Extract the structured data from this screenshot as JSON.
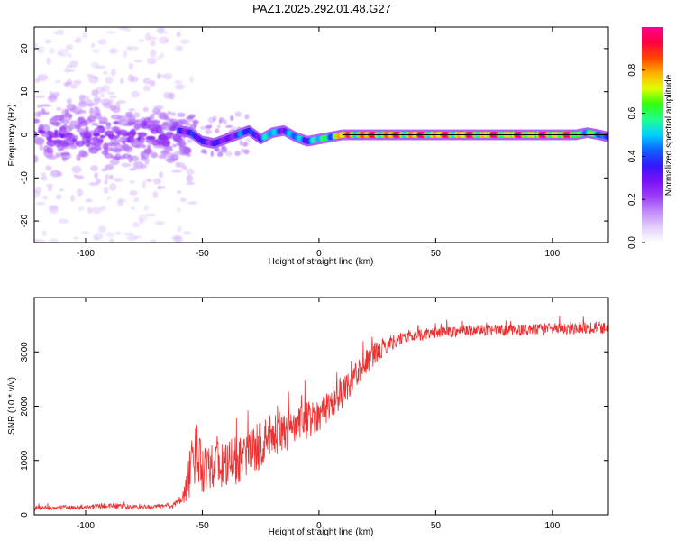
{
  "figure_title": "PAZ1.2025.292.01.48.G27",
  "colors": {
    "snr_line": "#ee3030",
    "tracking_line": "#000000",
    "colormap": [
      "#ffffff",
      "#e3cffb",
      "#c08af8",
      "#9a3df8",
      "#7b10f8",
      "#3318fb",
      "#1060ff",
      "#00d0ff",
      "#20ff90",
      "#30ff10",
      "#e0ff00",
      "#ffb000",
      "#ff4400",
      "#ff0040",
      "#ff0090"
    ]
  },
  "chart_data": [
    {
      "type": "heatmap",
      "title": "",
      "xlabel": "Height of straight line (km)",
      "ylabel": "Frequency (Hz)",
      "xlim": [
        -122,
        124
      ],
      "ylim": [
        -25,
        25
      ],
      "x_ticks": [
        -100,
        -50,
        0,
        50,
        100
      ],
      "y_ticks": [
        -20,
        -10,
        0,
        10,
        20
      ],
      "colorbar": {
        "label": "Normalized spectral amplitude",
        "range": [
          0,
          1
        ],
        "ticks": [
          0.0,
          0.2,
          0.4,
          0.6,
          0.8
        ]
      },
      "tracking_line": {
        "frequency": 0,
        "x_range": [
          10,
          124
        ]
      },
      "ridge": {
        "x": [
          -60,
          -55,
          -50,
          -45,
          -40,
          -35,
          -30,
          -25,
          -20,
          -15,
          -10,
          -5,
          0,
          5,
          10,
          20,
          30,
          40,
          50,
          60,
          70,
          80,
          90,
          100,
          110,
          115,
          120,
          124
        ],
        "frequency": [
          1.0,
          0.5,
          -1.5,
          -2.0,
          -1.0,
          0.0,
          1.0,
          -1.0,
          0.5,
          1.0,
          -0.5,
          -1.5,
          -1.0,
          -0.5,
          0.0,
          0.0,
          0.0,
          0.0,
          0.0,
          0.0,
          0.0,
          0.0,
          0.0,
          0.0,
          0.0,
          0.5,
          0.0,
          -0.5
        ],
        "amplitude": [
          0.45,
          0.35,
          0.4,
          0.35,
          0.3,
          0.45,
          0.4,
          0.5,
          0.55,
          0.45,
          0.5,
          0.55,
          0.55,
          0.7,
          0.85,
          0.9,
          0.9,
          0.9,
          0.9,
          0.9,
          0.9,
          0.9,
          0.9,
          0.9,
          0.85,
          0.6,
          0.55,
          0.5
        ]
      },
      "noise_region": {
        "x_range": [
          -122,
          -60
        ],
        "frequency_range": [
          -25,
          25
        ],
        "amplitude_range": [
          0.05,
          0.3
        ]
      }
    },
    {
      "type": "line",
      "title": "",
      "xlabel": "Height of straight line (km)",
      "ylabel": "SNR (10 * v/v)",
      "xlim": [
        -122,
        124
      ],
      "ylim": [
        0,
        4000
      ],
      "x_ticks": [
        -100,
        -50,
        0,
        50,
        100
      ],
      "y_ticks": [
        0,
        1000,
        2000,
        3000
      ],
      "x": [
        -122,
        -110,
        -100,
        -90,
        -80,
        -70,
        -62,
        -58,
        -55,
        -52,
        -50,
        -45,
        -40,
        -35,
        -30,
        -25,
        -20,
        -15,
        -10,
        -5,
        0,
        5,
        10,
        15,
        20,
        25,
        30,
        35,
        40,
        50,
        60,
        70,
        80,
        90,
        100,
        110,
        124
      ],
      "y": [
        120,
        130,
        140,
        170,
        140,
        150,
        180,
        350,
        800,
        1200,
        900,
        1000,
        900,
        1000,
        1100,
        1300,
        1500,
        1500,
        1600,
        1750,
        1850,
        2050,
        2250,
        2550,
        2800,
        3000,
        3150,
        3250,
        3300,
        3350,
        3380,
        3400,
        3400,
        3400,
        3420,
        3450,
        3450
      ],
      "noise_amplitude": [
        40,
        40,
        40,
        60,
        40,
        40,
        60,
        150,
        500,
        600,
        500,
        500,
        450,
        450,
        450,
        450,
        400,
        400,
        350,
        350,
        300,
        300,
        300,
        250,
        250,
        200,
        150,
        120,
        110,
        100,
        100,
        100,
        100,
        110,
        110,
        120,
        120
      ]
    }
  ]
}
